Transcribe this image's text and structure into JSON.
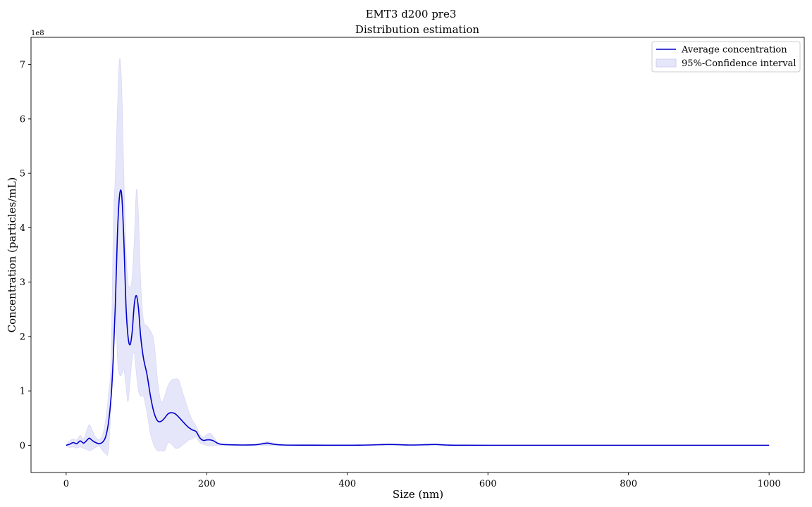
{
  "chart_data": {
    "type": "line",
    "suptitle": "EMT3 d200 pre3",
    "title": "Distribution estimation",
    "xlabel": "Size (nm)",
    "ylabel": "Concentration (particles/mL)",
    "y_offset_label": "1e8",
    "xlim": [
      -50,
      1050
    ],
    "ylim": [
      -0.5,
      7.5
    ],
    "y_scale": 100000000,
    "x_ticks": [
      0,
      200,
      400,
      600,
      800,
      1000
    ],
    "y_ticks": [
      0,
      1,
      2,
      3,
      4,
      5,
      6,
      7
    ],
    "legend_position": "top-right",
    "grid": false,
    "series": [
      {
        "name": "Average concentration",
        "kind": "line",
        "color": "#0000cc",
        "x": [
          0,
          5,
          10,
          15,
          20,
          25,
          30,
          33,
          37,
          42,
          47,
          52,
          56,
          60,
          64,
          67,
          70,
          73,
          76,
          79,
          82,
          85,
          88,
          91,
          94,
          97,
          100,
          103,
          106,
          110,
          115,
          120,
          125,
          130,
          135,
          140,
          145,
          150,
          155,
          160,
          165,
          170,
          175,
          180,
          185,
          190,
          195,
          200,
          205,
          210,
          215,
          220,
          230,
          250,
          270,
          280,
          287,
          295,
          310,
          350,
          400,
          430,
          460,
          490,
          510,
          525,
          540,
          560,
          600,
          700,
          800,
          900,
          1000
        ],
        "y": [
          0.0,
          0.02,
          0.05,
          0.03,
          0.08,
          0.04,
          0.1,
          0.13,
          0.09,
          0.05,
          0.03,
          0.06,
          0.15,
          0.4,
          0.9,
          1.6,
          2.6,
          3.9,
          4.6,
          4.6,
          3.8,
          2.6,
          2.0,
          1.85,
          2.1,
          2.6,
          2.75,
          2.5,
          2.0,
          1.6,
          1.3,
          0.9,
          0.6,
          0.45,
          0.44,
          0.5,
          0.58,
          0.6,
          0.58,
          0.52,
          0.45,
          0.38,
          0.32,
          0.28,
          0.25,
          0.14,
          0.09,
          0.1,
          0.1,
          0.08,
          0.04,
          0.02,
          0.01,
          0.005,
          0.01,
          0.03,
          0.04,
          0.02,
          0.005,
          0.002,
          0.001,
          0.005,
          0.015,
          0.005,
          0.01,
          0.015,
          0.005,
          0.001,
          0.0,
          0.0,
          0.0,
          0.0,
          0.0
        ]
      },
      {
        "name": "95%-Confidence interval",
        "kind": "band",
        "color": "#e6e6fa",
        "x": [
          0,
          5,
          10,
          15,
          20,
          25,
          30,
          33,
          37,
          42,
          47,
          52,
          56,
          60,
          64,
          67,
          70,
          73,
          76,
          79,
          82,
          85,
          88,
          91,
          94,
          97,
          100,
          103,
          106,
          110,
          115,
          120,
          125,
          130,
          135,
          140,
          145,
          150,
          155,
          160,
          165,
          170,
          175,
          180,
          185,
          190,
          195,
          200,
          205,
          210,
          215,
          220,
          230,
          250,
          270,
          280,
          287,
          295,
          310,
          350,
          400,
          430,
          460,
          490,
          510,
          525,
          540,
          560,
          600,
          700,
          800,
          900,
          1000
        ],
        "lower": [
          0.0,
          -0.04,
          -0.03,
          -0.05,
          -0.03,
          -0.06,
          -0.08,
          -0.1,
          -0.08,
          -0.04,
          -0.02,
          -0.1,
          -0.15,
          -0.1,
          0.8,
          2.1,
          2.8,
          1.6,
          1.3,
          1.3,
          1.4,
          1.1,
          0.8,
          1.2,
          1.6,
          1.7,
          1.3,
          1.0,
          0.9,
          0.9,
          0.6,
          0.2,
          0.0,
          -0.1,
          -0.1,
          -0.1,
          0.05,
          0.02,
          -0.05,
          -0.05,
          0.0,
          0.05,
          0.1,
          0.12,
          0.15,
          0.05,
          0.02,
          0.0,
          -0.01,
          0.0,
          0.0,
          0.0,
          0.0,
          0.0,
          0.0,
          0.0,
          0.0,
          0.0,
          0.0,
          0.0,
          0.0,
          0.0,
          0.0,
          0.0,
          0.0,
          0.0,
          0.0,
          0.0,
          0.0,
          0.0,
          0.0,
          0.0,
          0.0
        ],
        "upper": [
          0.0,
          0.08,
          0.12,
          0.1,
          0.18,
          0.12,
          0.3,
          0.38,
          0.28,
          0.15,
          0.1,
          0.2,
          0.45,
          0.9,
          1.6,
          4.0,
          5.0,
          6.2,
          7.1,
          6.6,
          5.0,
          3.6,
          3.0,
          2.9,
          3.1,
          3.8,
          4.7,
          4.2,
          3.0,
          2.3,
          2.2,
          2.1,
          1.9,
          1.2,
          0.8,
          0.9,
          1.1,
          1.2,
          1.22,
          1.2,
          1.0,
          0.8,
          0.6,
          0.45,
          0.35,
          0.2,
          0.15,
          0.2,
          0.22,
          0.15,
          0.05,
          0.03,
          0.02,
          0.01,
          0.02,
          0.05,
          0.07,
          0.04,
          0.01,
          0.005,
          0.003,
          0.01,
          0.025,
          0.01,
          0.02,
          0.025,
          0.01,
          0.003,
          0.0,
          0.0,
          0.0,
          0.0,
          0.0
        ]
      }
    ]
  }
}
